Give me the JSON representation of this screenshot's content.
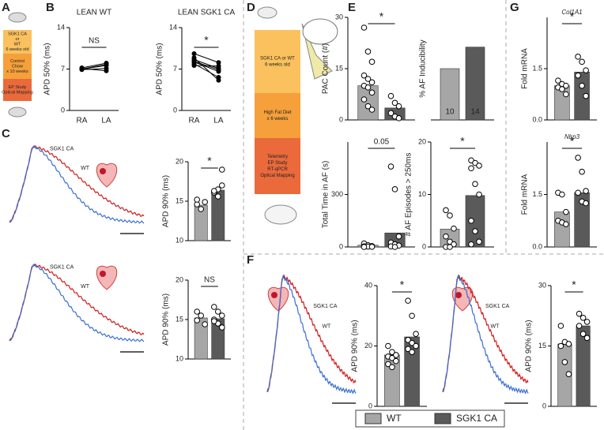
{
  "panels": [
    "A",
    "B",
    "C",
    "D",
    "E",
    "F",
    "G"
  ],
  "timeline_a": [
    [
      "SGK1 CA",
      "or",
      "WT",
      "6 weeks old"
    ],
    [
      "Control",
      "Chow",
      "x 10 weeks"
    ],
    [
      "EP Study",
      "Optical Mapping"
    ]
  ],
  "timeline_d": [
    [
      "SGK1 CA or WT",
      "6 weeks old"
    ],
    [
      "High Fat Diet",
      "x 6 weeks"
    ],
    [
      "Telemetry",
      "EP Study",
      "RT-qPCR",
      "Optical Mapping"
    ]
  ],
  "traces": [
    {
      "labels": [
        "SGK1 CA",
        "WT"
      ]
    },
    {
      "labels": [
        "SGK1 CA",
        "WT"
      ]
    },
    {
      "labels": [
        "SGK1 CA",
        "WT"
      ]
    },
    {
      "labels": [
        "SGK1 CA",
        "WT"
      ]
    }
  ],
  "legend": [
    {
      "name": "WT",
      "color": "#a6a6a6"
    },
    {
      "name": "SGK1 CA",
      "color": "#5a5a5a"
    }
  ],
  "chart_data": [
    {
      "type": "paired",
      "title": "LEAN WT",
      "ylabel": "APD 50% (ms)",
      "annotation": "NS",
      "categories": [
        "RA",
        "LA"
      ],
      "values": [
        [
          7.2,
          7.0,
          6.9,
          7.1,
          7.0
        ],
        [
          8.0,
          7.6,
          7.1,
          6.7,
          7.8
        ]
      ],
      "color": "#000000",
      "ylim": [
        0,
        14
      ],
      "yticks": [
        0,
        7,
        14
      ]
    },
    {
      "type": "paired",
      "title": "LEAN SGK1 CA",
      "ylabel": "APD 50% (ms)",
      "annotation": "*",
      "categories": [
        "RA",
        "LA"
      ],
      "values": [
        [
          9.6,
          8.6,
          8.2,
          7.9,
          7.6,
          8.3,
          8.9
        ],
        [
          8.1,
          7.1,
          6.6,
          5.6,
          7.5,
          6.9,
          5.1
        ]
      ],
      "color": "#000000",
      "ylim": [
        0,
        14
      ],
      "yticks": [
        0,
        7,
        14
      ]
    },
    {
      "type": "bar_dot",
      "ylabel": "APD 90% (ms)",
      "annotation": "*",
      "ylim": [
        10,
        20
      ],
      "yticks": [
        10,
        15,
        20
      ],
      "bars": [
        14.5,
        16.4
      ],
      "points": [
        [
          14.6,
          14.0,
          14.9,
          15.2
        ],
        [
          16.1,
          16.5,
          17.0,
          16.3,
          15.6,
          19.0
        ]
      ]
    },
    {
      "type": "bar_dot",
      "ylabel": "APD 90% (ms)",
      "annotation": "NS",
      "ylim": [
        10,
        20
      ],
      "yticks": [
        10,
        15,
        20
      ],
      "bars": [
        15.2,
        15.1
      ],
      "points": [
        [
          16.0,
          15.5,
          14.4,
          14.9
        ],
        [
          16.6,
          16.0,
          15.5,
          15.0,
          14.5,
          14.0,
          14.8
        ]
      ]
    },
    {
      "type": "bar_dot",
      "ylabel": "PAC Count (#)",
      "annotation": "*",
      "ylim": [
        0,
        30
      ],
      "yticks": [
        0,
        15,
        30
      ],
      "bars": [
        10,
        3.5
      ],
      "points": [
        [
          27,
          20,
          17,
          13,
          12,
          11,
          10,
          9.5,
          8,
          6,
          4,
          3
        ],
        [
          7,
          5,
          4,
          2,
          1,
          0.5
        ]
      ]
    },
    {
      "type": "bar_dot",
      "ylabel": "% AF Inducibility",
      "ylim": [
        0,
        100
      ],
      "bars": [
        50,
        71
      ],
      "n_labels": [
        10,
        14
      ]
    },
    {
      "type": "bar_dot",
      "ylabel": "Total  Time in AF  (s)",
      "annotation": "0.05",
      "ylim": [
        0,
        600
      ],
      "yticks": [
        0,
        300
      ],
      "bars": [
        10,
        80
      ],
      "points": [
        [
          20,
          10,
          5,
          3,
          2,
          1,
          0
        ],
        [
          460,
          330,
          60,
          25,
          15,
          8,
          3,
          0
        ]
      ]
    },
    {
      "type": "bar_dot",
      "ylabel": "# AF Episodes > 250ms",
      "annotation": "*",
      "ylim": [
        0,
        20
      ],
      "yticks": [
        0,
        10,
        20
      ],
      "bars": [
        3.4,
        9.8
      ],
      "points": [
        [
          7,
          6,
          3.5,
          2,
          1,
          0.5,
          0,
          0
        ],
        [
          16.5,
          16,
          15.5,
          15,
          12,
          10,
          5,
          3,
          1,
          0.5
        ]
      ]
    },
    {
      "type": "bar_dot",
      "title": "Col1A1",
      "ylabel": "Fold mRNA",
      "annotation": "*",
      "ylim": [
        0,
        3
      ],
      "yticks": [
        {
          "value": 0,
          "label": "0.0"
        },
        1.5
      ],
      "bars": [
        1.0,
        1.4
      ],
      "points": [
        [
          1.15,
          1.05,
          1.0,
          0.95,
          0.9,
          0.75
        ],
        [
          1.85,
          1.7,
          1.45,
          1.3,
          1.0,
          0.7
        ]
      ]
    },
    {
      "type": "bar_dot",
      "title": "Nlrp3",
      "ylabel": "Fold mRNA",
      "annotation": "*",
      "ylim": [
        0,
        3
      ],
      "yticks": [
        {
          "value": 0,
          "label": "0.0"
        },
        1.5
      ],
      "bars": [
        1.0,
        1.55
      ],
      "points": [
        [
          1.55,
          1.5,
          1.0,
          0.75,
          0.7,
          0.65
        ],
        [
          2.55,
          2.15,
          1.6,
          1.55,
          1.3,
          1.25
        ]
      ]
    },
    {
      "type": "bar_dot",
      "ylabel": "APD 90% (ms)",
      "annotation": "*",
      "ylim": [
        0,
        40
      ],
      "yticks": [
        0,
        20,
        40
      ],
      "bars": [
        17,
        23
      ],
      "points": [
        [
          20,
          18,
          17,
          16.5,
          16,
          15,
          14,
          13
        ],
        [
          35,
          30,
          24,
          22,
          21,
          20,
          19,
          18
        ]
      ]
    },
    {
      "type": "bar_dot",
      "ylabel": "APD 90% (ms)",
      "annotation": "*",
      "ylim": [
        0,
        30
      ],
      "yticks": [
        0,
        15,
        30
      ],
      "bars": [
        15.5,
        20
      ],
      "points": [
        [
          20,
          16,
          15.5,
          15,
          11,
          8
        ],
        [
          23,
          22,
          21,
          20,
          18,
          17
        ]
      ]
    }
  ]
}
